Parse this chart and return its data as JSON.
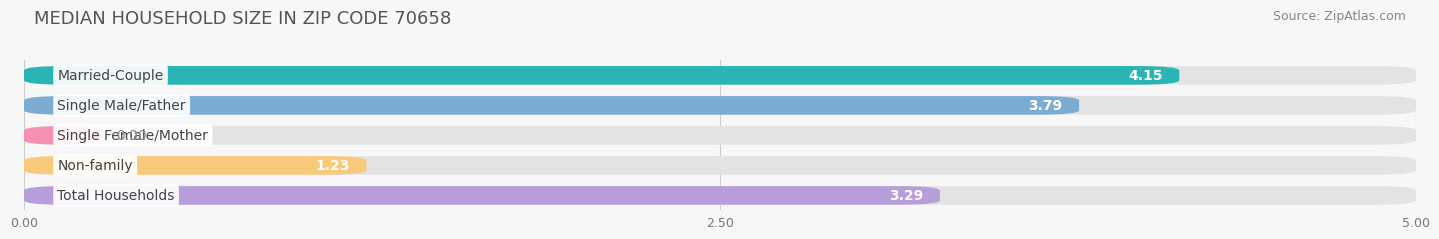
{
  "title": "MEDIAN HOUSEHOLD SIZE IN ZIP CODE 70658",
  "source": "Source: ZipAtlas.com",
  "categories": [
    "Married-Couple",
    "Single Male/Father",
    "Single Female/Mother",
    "Non-family",
    "Total Households"
  ],
  "values": [
    4.15,
    3.79,
    0.0,
    1.23,
    3.29
  ],
  "bar_colors": [
    "#2ab5b5",
    "#7bacd4",
    "#f490b2",
    "#f8c97a",
    "#b89ddb"
  ],
  "xlim": [
    0,
    5.0
  ],
  "xticks": [
    0.0,
    2.5,
    5.0
  ],
  "xtick_labels": [
    "0.00",
    "2.50",
    "5.00"
  ],
  "bar_height": 0.62,
  "background_color": "#f7f7f7",
  "bar_bg_color": "#e3e3e3",
  "title_fontsize": 13,
  "source_fontsize": 9,
  "label_fontsize": 10,
  "value_fontsize": 10
}
